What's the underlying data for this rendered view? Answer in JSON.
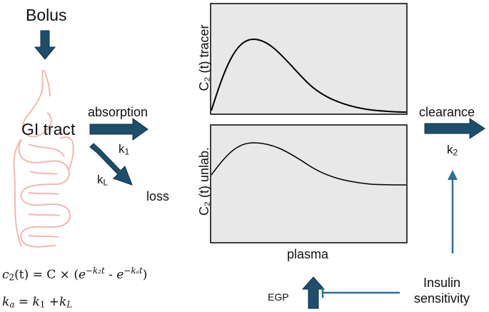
{
  "colors": {
    "arrow_fill": "#1d4e6b",
    "arrow_stroke": "#0f3147",
    "inhibit_line": "#2c7094",
    "plot_bg": "#e8e8e8",
    "gut_outline": "#f2b8b2"
  },
  "labels": {
    "bolus": "Bolus",
    "gi_tract": "GI tract",
    "absorption": "absorption",
    "k1": "k",
    "k1_sub": "1",
    "kL": "k",
    "kL_sub": "L",
    "loss": "loss",
    "clearance": "clearance",
    "k2": "k",
    "k2_sub": "2",
    "plasma": "plasma",
    "insulin_line1": "Insulin",
    "insulin_line2": "sensitivity",
    "egp": "EGP"
  },
  "plots": {
    "tracer_ylabel": "C₂ (t) tracer",
    "unlabeled_ylabel": "C₂ (t) unlab."
  },
  "equations": {
    "eq1_lhs": "c",
    "eq1_sub": "2",
    "eq1_t": "(t) = C × (",
    "eq1_e": "e",
    "eq1_sup1": "−k₂t",
    "eq1_mid": " - ",
    "eq1_sup2": "−kₐt",
    "eq1_end": ")",
    "eq2_k": "k",
    "eq2_sub_a": "a",
    "eq2_mid": " = ",
    "eq2_k1": "k",
    "eq2_sub_1": "1",
    "eq2_plus": " +",
    "eq2_kL": "k",
    "eq2_sub_L": "L"
  }
}
